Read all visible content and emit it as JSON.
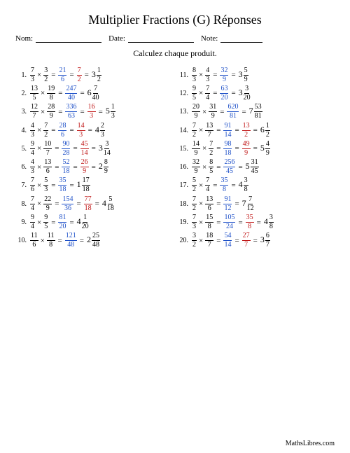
{
  "title": "Multiplier Fractions (G) Réponses",
  "labels": {
    "name": "Nom:",
    "date": "Date:",
    "grade": "Note:"
  },
  "instruction": "Calculez chaque produit.",
  "footer": "MathsLibres.com",
  "left": [
    {
      "n": 1,
      "a": {
        "t": 7,
        "b": 3
      },
      "b": {
        "t": 3,
        "b": 2
      },
      "p": {
        "t": 21,
        "b": 6
      },
      "s": {
        "t": 7,
        "b": 2
      },
      "m": {
        "i": 3,
        "t": 1,
        "b": 2
      }
    },
    {
      "n": 2,
      "a": {
        "t": 13,
        "b": 5
      },
      "b": {
        "t": 19,
        "b": 8
      },
      "p": {
        "t": 247,
        "b": 40
      },
      "s": null,
      "m": {
        "i": 6,
        "t": 7,
        "b": 40
      }
    },
    {
      "n": 3,
      "a": {
        "t": 12,
        "b": 7
      },
      "b": {
        "t": 28,
        "b": 9
      },
      "p": {
        "t": 336,
        "b": 63
      },
      "s": {
        "t": 16,
        "b": 3
      },
      "m": {
        "i": 5,
        "t": 1,
        "b": 3
      }
    },
    {
      "n": 4,
      "a": {
        "t": 4,
        "b": 3
      },
      "b": {
        "t": 7,
        "b": 2
      },
      "p": {
        "t": 28,
        "b": 6
      },
      "s": {
        "t": 14,
        "b": 3
      },
      "m": {
        "i": 4,
        "t": 2,
        "b": 3
      }
    },
    {
      "n": 5,
      "a": {
        "t": 9,
        "b": 4
      },
      "b": {
        "t": 10,
        "b": 7
      },
      "p": {
        "t": 90,
        "b": 28
      },
      "s": {
        "t": 45,
        "b": 14
      },
      "m": {
        "i": 3,
        "t": 3,
        "b": 14
      }
    },
    {
      "n": 6,
      "a": {
        "t": 4,
        "b": 3
      },
      "b": {
        "t": 13,
        "b": 6
      },
      "p": {
        "t": 52,
        "b": 18
      },
      "s": {
        "t": 26,
        "b": 9
      },
      "m": {
        "i": 2,
        "t": 8,
        "b": 9
      }
    },
    {
      "n": 7,
      "a": {
        "t": 7,
        "b": 6
      },
      "b": {
        "t": 5,
        "b": 3
      },
      "p": {
        "t": 35,
        "b": 18
      },
      "s": null,
      "m": {
        "i": 1,
        "t": 17,
        "b": 18
      }
    },
    {
      "n": 8,
      "a": {
        "t": 7,
        "b": 4
      },
      "b": {
        "t": 22,
        "b": 9
      },
      "p": {
        "t": 154,
        "b": 36
      },
      "s": {
        "t": 77,
        "b": 18
      },
      "m": {
        "i": 4,
        "t": 5,
        "b": 18
      }
    },
    {
      "n": 9,
      "a": {
        "t": 9,
        "b": 4
      },
      "b": {
        "t": 9,
        "b": 5
      },
      "p": {
        "t": 81,
        "b": 20
      },
      "s": null,
      "m": {
        "i": 4,
        "t": 1,
        "b": 20
      }
    },
    {
      "n": 10,
      "a": {
        "t": 11,
        "b": 6
      },
      "b": {
        "t": 11,
        "b": 8
      },
      "p": {
        "t": 121,
        "b": 48
      },
      "s": null,
      "m": {
        "i": 2,
        "t": 25,
        "b": 48
      }
    }
  ],
  "right": [
    {
      "n": 11,
      "a": {
        "t": 8,
        "b": 3
      },
      "b": {
        "t": 4,
        "b": 3
      },
      "p": {
        "t": 32,
        "b": 9
      },
      "s": null,
      "m": {
        "i": 3,
        "t": 5,
        "b": 9
      }
    },
    {
      "n": 12,
      "a": {
        "t": 9,
        "b": 5
      },
      "b": {
        "t": 7,
        "b": 4
      },
      "p": {
        "t": 63,
        "b": 20
      },
      "s": null,
      "m": {
        "i": 3,
        "t": 3,
        "b": 20
      }
    },
    {
      "n": 13,
      "a": {
        "t": 20,
        "b": 9
      },
      "b": {
        "t": 31,
        "b": 9
      },
      "p": {
        "t": 620,
        "b": 81
      },
      "s": null,
      "m": {
        "i": 7,
        "t": 53,
        "b": 81
      }
    },
    {
      "n": 14,
      "a": {
        "t": 7,
        "b": 2
      },
      "b": {
        "t": 13,
        "b": 7
      },
      "p": {
        "t": 91,
        "b": 14
      },
      "s": {
        "t": 13,
        "b": 2
      },
      "m": {
        "i": 6,
        "t": 1,
        "b": 2
      }
    },
    {
      "n": 15,
      "a": {
        "t": 14,
        "b": 9
      },
      "b": {
        "t": 7,
        "b": 2
      },
      "p": {
        "t": 98,
        "b": 18
      },
      "s": {
        "t": 49,
        "b": 9
      },
      "m": {
        "i": 5,
        "t": 4,
        "b": 9
      }
    },
    {
      "n": 16,
      "a": {
        "t": 32,
        "b": 9
      },
      "b": {
        "t": 8,
        "b": 5
      },
      "p": {
        "t": 256,
        "b": 45
      },
      "s": null,
      "m": {
        "i": 5,
        "t": 31,
        "b": 45
      }
    },
    {
      "n": 17,
      "a": {
        "t": 5,
        "b": 2
      },
      "b": {
        "t": 7,
        "b": 4
      },
      "p": {
        "t": 35,
        "b": 8
      },
      "s": null,
      "m": {
        "i": 4,
        "t": 3,
        "b": 8
      }
    },
    {
      "n": 18,
      "a": {
        "t": 7,
        "b": 2
      },
      "b": {
        "t": 13,
        "b": 6
      },
      "p": {
        "t": 91,
        "b": 12
      },
      "s": null,
      "m": {
        "i": 7,
        "t": 7,
        "b": 12
      }
    },
    {
      "n": 19,
      "a": {
        "t": 7,
        "b": 3
      },
      "b": {
        "t": 15,
        "b": 8
      },
      "p": {
        "t": 105,
        "b": 24
      },
      "s": {
        "t": 35,
        "b": 8
      },
      "m": {
        "i": 4,
        "t": 3,
        "b": 8
      }
    },
    {
      "n": 20,
      "a": {
        "t": 3,
        "b": 2
      },
      "b": {
        "t": 18,
        "b": 7
      },
      "p": {
        "t": 54,
        "b": 14
      },
      "s": {
        "t": 27,
        "b": 7
      },
      "m": {
        "i": 3,
        "t": 6,
        "b": 7
      }
    }
  ]
}
